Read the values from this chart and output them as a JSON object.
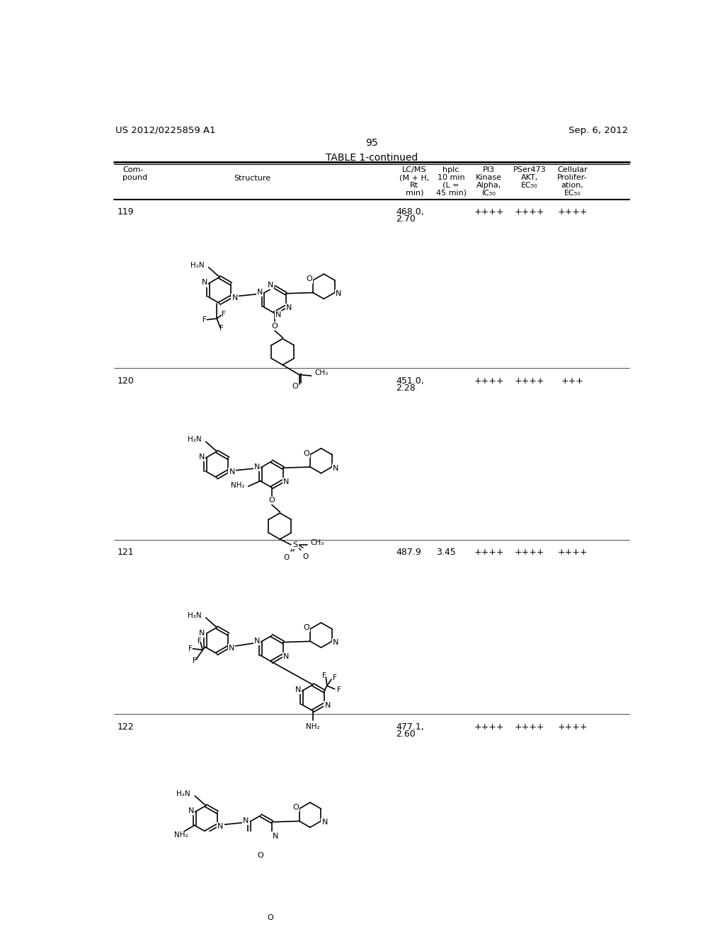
{
  "page_header_left": "US 2012/0225859 A1",
  "page_header_right": "Sep. 6, 2012",
  "page_number": "95",
  "table_title": "TABLE 1-continued",
  "bg_color": "#ffffff",
  "text_color": "#000000",
  "compounds": [
    {
      "id": "119",
      "lcms": "468.0,\n2.70",
      "pi3": "++++",
      "pser": "++++",
      "cellular": "++++"
    },
    {
      "id": "120",
      "lcms": "451.0,\n2.28",
      "pi3": "++++",
      "pser": "++++",
      "cellular": "+++"
    },
    {
      "id": "121",
      "lcms": "487.9   3.45",
      "pi3": "++++",
      "pser": "++++",
      "cellular": "++++"
    },
    {
      "id": "122",
      "lcms": "477.1,\n2.60",
      "pi3": "++++",
      "pser": "++++",
      "cellular": "++++"
    }
  ]
}
